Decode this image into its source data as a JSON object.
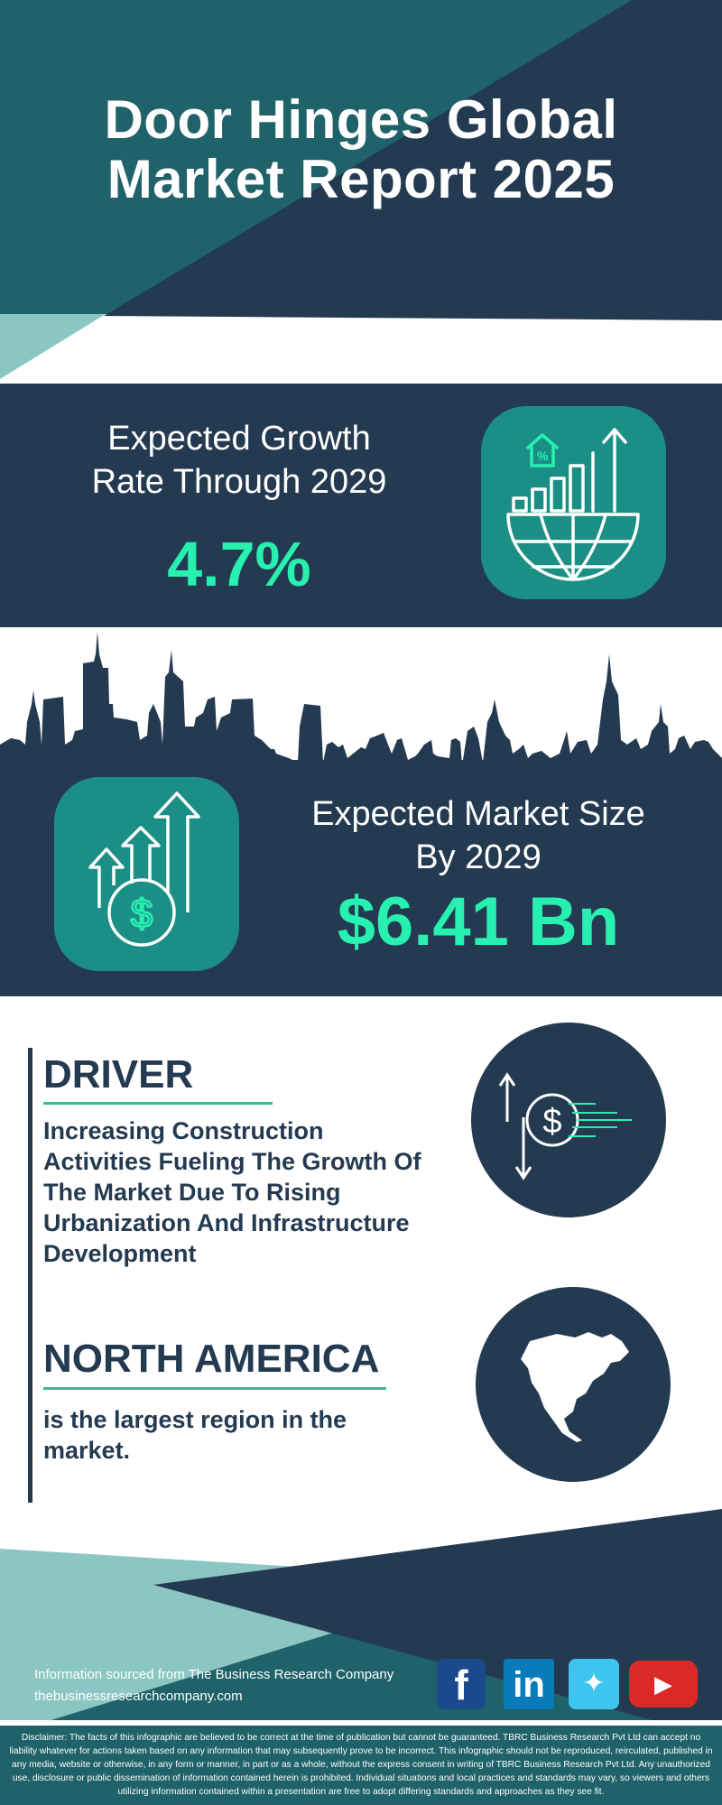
{
  "header": {
    "title_line1": "Door Hinges Global",
    "title_line2": "Market Report 2025"
  },
  "growth": {
    "label_line1": "Expected Growth",
    "label_line2": "Rate Through 2029",
    "value": "4.7%",
    "icon": "house-percent-bar-chart-globe-icon"
  },
  "market_size": {
    "label_line1": "Expected Market Size",
    "label_line2": "By 2029",
    "value": "$6.41 Bn",
    "icon": "dollar-coin-arrows-up-icon"
  },
  "driver": {
    "heading": "DRIVER",
    "text": "Increasing Construction Activities Fueling The Growth Of The Market Due To Rising Urbanization And Infrastructure Development",
    "icon": "dollar-exchange-icon"
  },
  "region": {
    "heading": "NORTH AMERICA",
    "text": "is the largest region in the market.",
    "icon": "north-america-map-icon"
  },
  "footer": {
    "source": "Information sourced from The Business Research Company",
    "url": "thebusinessresearchcompany.com",
    "social": [
      "facebook",
      "linkedin",
      "twitter",
      "youtube"
    ]
  },
  "disclaimer": "Disclaimer: The facts of this infographic are believed to be correct at the time of publication but cannot be guaranteed. TBRC Business Research Pvt Ltd can accept no liability whatever for actions taken based on any information that may subsequently prove to be incorrect. This infographic should not be reproduced, reirculated, published in any media, website or otherwise, in any form or manner, in part or as a whole, without the express consent in writing of TBRC Business Research Pvt Ltd. Any unauthorized use, disclosure or public dissemination of information contained herein is prohibited. Individual situations and local practices and standards may vary, so viewers and others utilizing information contained within a presentation are free to adopt differing standards and approaches as they see fit.",
  "colors": {
    "dark": "#243a50",
    "teal": "#1f6269",
    "light_teal": "#8cc6c2",
    "icon_box": "#1b8f85",
    "accent": "#27f0b0"
  }
}
